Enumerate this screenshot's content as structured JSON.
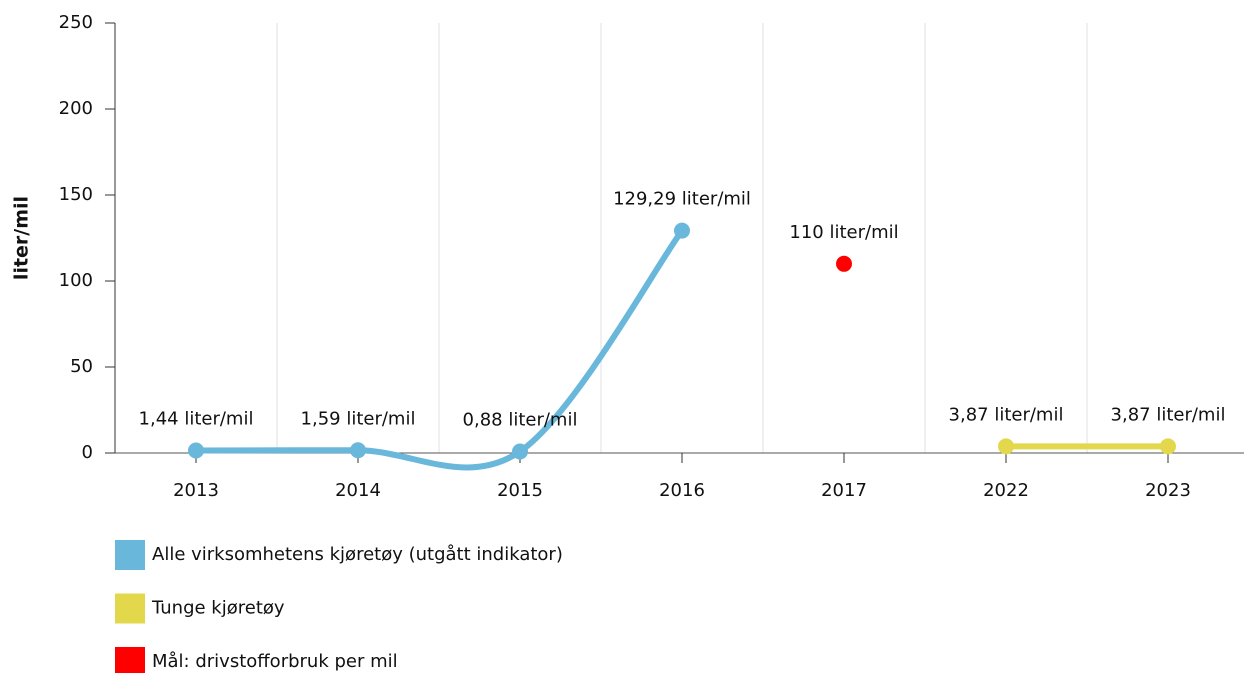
{
  "chart_data": {
    "type": "line",
    "y_label": "liter/mil",
    "categories": [
      "2013",
      "2014",
      "2015",
      "2016",
      "2017",
      "2022",
      "2023"
    ],
    "ylim": [
      0,
      250
    ],
    "yticks": [
      0,
      50,
      100,
      150,
      200,
      250
    ],
    "grid": "x",
    "smooth": true,
    "legend": "bottom",
    "series": [
      {
        "name": "Alle virksomhetens kjøretøy (utgått indikator)",
        "color": "#6ab7dc",
        "values": [
          1.44,
          1.59,
          0.88,
          129.29,
          null,
          null,
          null
        ],
        "value_labels": [
          "1,44 liter/mil",
          "1,59 liter/mil",
          "0,88 liter/mil",
          "129,29 liter/mil",
          null,
          null,
          null
        ]
      },
      {
        "name": "Tunge kjøretøy",
        "color": "#e3d84b",
        "values": [
          null,
          null,
          null,
          null,
          null,
          3.87,
          3.87
        ],
        "value_labels": [
          null,
          null,
          null,
          null,
          null,
          "3,87 liter/mil",
          "3,87 liter/mil"
        ]
      },
      {
        "name": "Mål: drivstofforbruk per mil",
        "color": "#ff0000",
        "type": "scatter",
        "values": [
          null,
          null,
          null,
          null,
          110,
          null,
          null
        ],
        "value_labels": [
          null,
          null,
          null,
          null,
          "110 liter/mil",
          null,
          null
        ]
      }
    ]
  }
}
